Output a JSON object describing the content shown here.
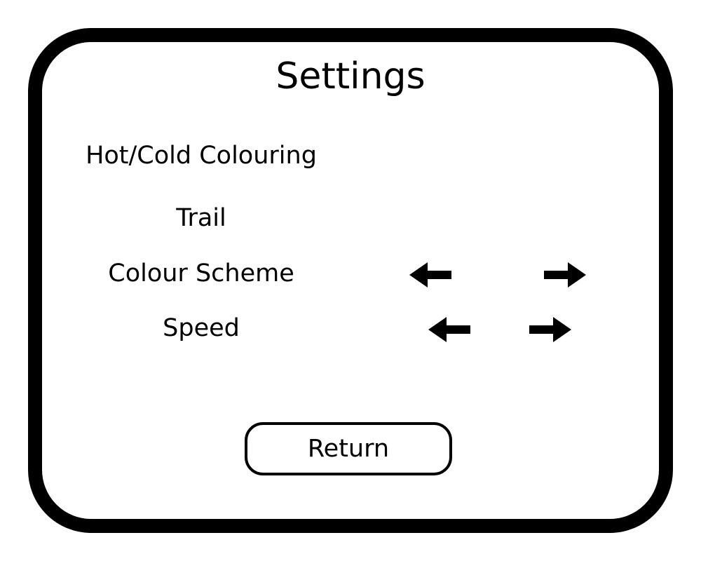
{
  "title": "Settings",
  "settings": {
    "hot_cold": {
      "label": "Hot/Cold Colouring"
    },
    "trail": {
      "label": "Trail"
    },
    "colour_scheme": {
      "label": "Colour Scheme",
      "prev_icon": "arrow-left-icon",
      "next_icon": "arrow-right-icon"
    },
    "speed": {
      "label": "Speed",
      "prev_icon": "arrow-left-icon",
      "next_icon": "arrow-right-icon"
    }
  },
  "return_button": {
    "label": "Return"
  },
  "colors": {
    "border": "#000000",
    "background": "#ffffff",
    "text": "#000000"
  }
}
